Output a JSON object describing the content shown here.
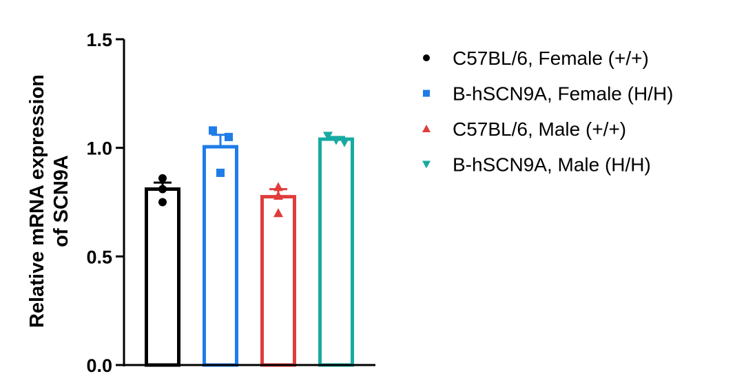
{
  "chart_data": {
    "type": "bar",
    "ylabel": [
      "Relative mRNA expression",
      "of SCN9A"
    ],
    "ylim": [
      0,
      1.5
    ],
    "yticks": [
      "0.0",
      "0.5",
      "1.0",
      "1.5"
    ],
    "legend_position": "right",
    "series": [
      {
        "name": "C57BL/6, Female (+/+)",
        "color": "#000000",
        "marker": "circle",
        "mean": 0.81,
        "sem": 0.03,
        "points": [
          0.86,
          0.81,
          0.75
        ]
      },
      {
        "name": "B-hSCN9A, Female (H/H)",
        "color": "#1f7ce8",
        "marker": "square",
        "mean": 1.005,
        "sem": 0.055,
        "points": [
          1.08,
          1.05,
          0.885
        ]
      },
      {
        "name": "C57BL/6, Male (+/+)",
        "color": "#e03c3c",
        "marker": "triangle-up",
        "mean": 0.775,
        "sem": 0.035,
        "points": [
          0.82,
          0.78,
          0.7
        ]
      },
      {
        "name": "B-hSCN9A, Male (H/H)",
        "color": "#17aaa2",
        "marker": "triangle-down",
        "mean": 1.04,
        "sem": 0.01,
        "points": [
          1.055,
          1.035,
          1.025
        ]
      }
    ]
  }
}
